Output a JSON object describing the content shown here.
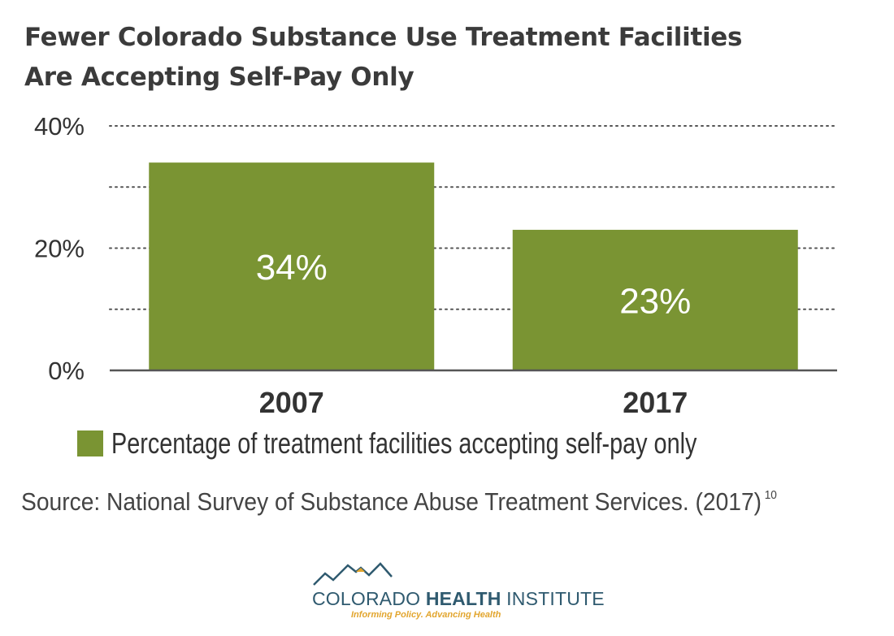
{
  "title_lines": [
    "Fewer Colorado Substance Use Treatment Facilities",
    "Are Accepting Self-Pay Only"
  ],
  "chart_data": {
    "type": "bar",
    "categories": [
      "2007",
      "2017"
    ],
    "series": [
      {
        "name": "Percentage of treatment facilities accepting self-pay only",
        "values": [
          34,
          23
        ]
      }
    ],
    "data_labels": [
      "34%",
      "23%"
    ],
    "ylim": [
      0,
      40
    ],
    "yticks": [
      0,
      20,
      40
    ],
    "ytick_labels": [
      "0%",
      "20%",
      "40%"
    ],
    "gridlines": [
      10,
      20,
      30,
      40
    ],
    "grid": true,
    "grid_style": "dotted",
    "legend_position": "bottom",
    "bar_color": "#7a9433"
  },
  "legend": {
    "label": "Percentage of treatment facilities accepting self-pay only"
  },
  "source": {
    "text": "Source: National Survey of Substance Abuse Treatment Services. (2017)",
    "ref": "10"
  },
  "logo": {
    "name_regular_1": "COLORADO ",
    "name_bold": "HEALTH",
    "name_regular_2": " INSTITUTE",
    "tagline": "Informing Policy. Advancing Health"
  },
  "colors": {
    "bar": "#7a9433",
    "text": "#333333",
    "logo_blue": "#2f5a6f",
    "logo_gold": "#e2a52d"
  }
}
